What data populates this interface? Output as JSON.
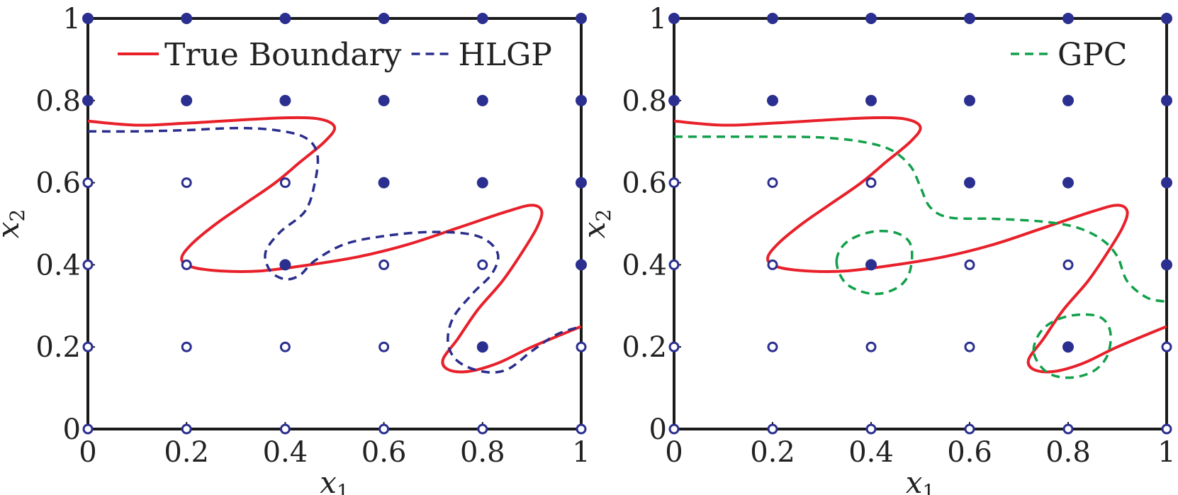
{
  "chart_data": [
    {
      "type": "scatter",
      "panel": "left",
      "xlabel": "x",
      "xlabel_sub": "1",
      "ylabel": "x",
      "ylabel_sub": "2",
      "xlim": [
        0,
        1
      ],
      "ylim": [
        0,
        1
      ],
      "x_ticks": [
        "0",
        "0.2",
        "0.4",
        "0.6",
        "0.8",
        "1"
      ],
      "y_ticks": [
        "0",
        "0.2",
        "0.4",
        "0.6",
        "0.8",
        "1"
      ],
      "grid": false,
      "legend_position": "top",
      "series": [
        {
          "name": "True Boundary",
          "kind": "curve",
          "style": "solid",
          "color": "#e8202a",
          "points": [
            [
              0,
              0.75
            ],
            [
              0.1,
              0.74
            ],
            [
              0.2,
              0.745
            ],
            [
              0.3,
              0.752
            ],
            [
              0.4,
              0.758
            ],
            [
              0.47,
              0.755
            ],
            [
              0.5,
              0.735
            ],
            [
              0.48,
              0.7
            ],
            [
              0.43,
              0.65
            ],
            [
              0.38,
              0.6
            ],
            [
              0.32,
              0.55
            ],
            [
              0.26,
              0.5
            ],
            [
              0.21,
              0.45
            ],
            [
              0.19,
              0.415
            ],
            [
              0.21,
              0.395
            ],
            [
              0.27,
              0.385
            ],
            [
              0.35,
              0.385
            ],
            [
              0.45,
              0.4
            ],
            [
              0.55,
              0.42
            ],
            [
              0.65,
              0.45
            ],
            [
              0.75,
              0.49
            ],
            [
              0.85,
              0.53
            ],
            [
              0.9,
              0.545
            ],
            [
              0.92,
              0.53
            ],
            [
              0.91,
              0.49
            ],
            [
              0.88,
              0.43
            ],
            [
              0.84,
              0.36
            ],
            [
              0.79,
              0.29
            ],
            [
              0.75,
              0.22
            ],
            [
              0.72,
              0.17
            ],
            [
              0.73,
              0.145
            ],
            [
              0.77,
              0.14
            ],
            [
              0.83,
              0.16
            ],
            [
              0.9,
              0.2
            ],
            [
              1,
              0.25
            ]
          ]
        },
        {
          "name": "HLGP",
          "kind": "curve",
          "style": "dashed",
          "color": "#2a2e8c",
          "points": [
            [
              0,
              0.725
            ],
            [
              0.1,
              0.725
            ],
            [
              0.2,
              0.728
            ],
            [
              0.3,
              0.733
            ],
            [
              0.38,
              0.728
            ],
            [
              0.44,
              0.71
            ],
            [
              0.465,
              0.67
            ],
            [
              0.46,
              0.6
            ],
            [
              0.44,
              0.53
            ],
            [
              0.39,
              0.48
            ],
            [
              0.36,
              0.43
            ],
            [
              0.37,
              0.385
            ],
            [
              0.4,
              0.365
            ],
            [
              0.43,
              0.375
            ],
            [
              0.46,
              0.41
            ],
            [
              0.52,
              0.45
            ],
            [
              0.6,
              0.47
            ],
            [
              0.7,
              0.48
            ],
            [
              0.79,
              0.47
            ],
            [
              0.83,
              0.43
            ],
            [
              0.82,
              0.38
            ],
            [
              0.78,
              0.33
            ],
            [
              0.74,
              0.27
            ],
            [
              0.73,
              0.21
            ],
            [
              0.75,
              0.165
            ],
            [
              0.8,
              0.14
            ],
            [
              0.85,
              0.145
            ],
            [
              0.9,
              0.19
            ],
            [
              0.95,
              0.23
            ],
            [
              1,
              0.25
            ]
          ]
        }
      ],
      "grid_points": {
        "x": [
          0,
          0.2,
          0.4,
          0.6,
          0.8,
          1
        ],
        "filled": [
          [
            0,
            1
          ],
          [
            0.2,
            1
          ],
          [
            0.4,
            1
          ],
          [
            0.6,
            1
          ],
          [
            0.8,
            1
          ],
          [
            1,
            1
          ],
          [
            0,
            0.8
          ],
          [
            0.2,
            0.8
          ],
          [
            0.4,
            0.8
          ],
          [
            0.6,
            0.8
          ],
          [
            0.8,
            0.8
          ],
          [
            1,
            0.8
          ],
          [
            0.6,
            0.6
          ],
          [
            0.8,
            0.6
          ],
          [
            1,
            0.6
          ],
          [
            0.4,
            0.4
          ],
          [
            1,
            0.4
          ],
          [
            0.8,
            0.2
          ]
        ],
        "hollow": [
          [
            0,
            0.6
          ],
          [
            0.2,
            0.6
          ],
          [
            0.4,
            0.6
          ],
          [
            0,
            0.4
          ],
          [
            0.2,
            0.4
          ],
          [
            0.6,
            0.4
          ],
          [
            0.8,
            0.4
          ],
          [
            0,
            0.2
          ],
          [
            0.2,
            0.2
          ],
          [
            0.4,
            0.2
          ],
          [
            0.6,
            0.2
          ],
          [
            1,
            0.2
          ],
          [
            0,
            0
          ],
          [
            0.2,
            0
          ],
          [
            0.4,
            0
          ],
          [
            0.6,
            0
          ],
          [
            0.8,
            0
          ],
          [
            1,
            0
          ]
        ],
        "color": "#2b2f8f"
      }
    },
    {
      "type": "scatter",
      "panel": "right",
      "xlabel": "x",
      "xlabel_sub": "1",
      "ylabel": "x",
      "ylabel_sub": "2",
      "xlim": [
        0,
        1
      ],
      "ylim": [
        0,
        1
      ],
      "x_ticks": [
        "0",
        "0.2",
        "0.4",
        "0.6",
        "0.8",
        "1"
      ],
      "y_ticks": [
        "0",
        "0.2",
        "0.4",
        "0.6",
        "0.8",
        "1"
      ],
      "grid": false,
      "legend_position": "top-right",
      "series": [
        {
          "name": "",
          "kind": "curve",
          "style": "solid",
          "color": "#e8202a",
          "points": [
            [
              0,
              0.75
            ],
            [
              0.1,
              0.74
            ],
            [
              0.2,
              0.745
            ],
            [
              0.3,
              0.752
            ],
            [
              0.4,
              0.758
            ],
            [
              0.47,
              0.755
            ],
            [
              0.5,
              0.735
            ],
            [
              0.48,
              0.7
            ],
            [
              0.43,
              0.65
            ],
            [
              0.38,
              0.6
            ],
            [
              0.32,
              0.55
            ],
            [
              0.26,
              0.5
            ],
            [
              0.21,
              0.45
            ],
            [
              0.19,
              0.415
            ],
            [
              0.21,
              0.395
            ],
            [
              0.27,
              0.385
            ],
            [
              0.35,
              0.385
            ],
            [
              0.45,
              0.4
            ],
            [
              0.55,
              0.42
            ],
            [
              0.65,
              0.45
            ],
            [
              0.75,
              0.49
            ],
            [
              0.85,
              0.53
            ],
            [
              0.9,
              0.545
            ],
            [
              0.92,
              0.53
            ],
            [
              0.91,
              0.49
            ],
            [
              0.88,
              0.43
            ],
            [
              0.84,
              0.36
            ],
            [
              0.79,
              0.29
            ],
            [
              0.75,
              0.22
            ],
            [
              0.72,
              0.17
            ],
            [
              0.73,
              0.145
            ],
            [
              0.77,
              0.14
            ],
            [
              0.83,
              0.16
            ],
            [
              0.9,
              0.2
            ],
            [
              1,
              0.25
            ]
          ]
        },
        {
          "name": "GPC",
          "kind": "curve",
          "style": "dashed",
          "color": "#12a04a",
          "points": [
            [
              0,
              0.712
            ],
            [
              0.1,
              0.712
            ],
            [
              0.2,
              0.712
            ],
            [
              0.3,
              0.71
            ],
            [
              0.38,
              0.7
            ],
            [
              0.44,
              0.68
            ],
            [
              0.48,
              0.64
            ],
            [
              0.5,
              0.59
            ],
            [
              0.52,
              0.54
            ],
            [
              0.56,
              0.515
            ],
            [
              0.65,
              0.512
            ],
            [
              0.75,
              0.505
            ],
            [
              0.82,
              0.49
            ],
            [
              0.87,
              0.46
            ],
            [
              0.9,
              0.42
            ],
            [
              0.92,
              0.36
            ],
            [
              0.96,
              0.32
            ],
            [
              1,
              0.31
            ]
          ]
        },
        {
          "name": "",
          "kind": "curve",
          "style": "dashed",
          "color": "#12a04a",
          "closed": true,
          "points": [
            [
              0.33,
              0.41
            ],
            [
              0.35,
              0.455
            ],
            [
              0.4,
              0.48
            ],
            [
              0.45,
              0.478
            ],
            [
              0.48,
              0.45
            ],
            [
              0.48,
              0.39
            ],
            [
              0.46,
              0.35
            ],
            [
              0.42,
              0.33
            ],
            [
              0.38,
              0.335
            ],
            [
              0.345,
              0.36
            ]
          ]
        },
        {
          "name": "",
          "kind": "curve",
          "style": "dashed",
          "color": "#12a04a",
          "closed": true,
          "points": [
            [
              0.73,
              0.19
            ],
            [
              0.75,
              0.245
            ],
            [
              0.8,
              0.275
            ],
            [
              0.86,
              0.275
            ],
            [
              0.885,
              0.24
            ],
            [
              0.88,
              0.18
            ],
            [
              0.85,
              0.14
            ],
            [
              0.8,
              0.125
            ],
            [
              0.755,
              0.14
            ]
          ]
        }
      ],
      "grid_points": {
        "x": [
          0,
          0.2,
          0.4,
          0.6,
          0.8,
          1
        ],
        "filled": [
          [
            0,
            1
          ],
          [
            0.2,
            1
          ],
          [
            0.4,
            1
          ],
          [
            0.6,
            1
          ],
          [
            0.8,
            1
          ],
          [
            1,
            1
          ],
          [
            0,
            0.8
          ],
          [
            0.2,
            0.8
          ],
          [
            0.4,
            0.8
          ],
          [
            0.6,
            0.8
          ],
          [
            0.8,
            0.8
          ],
          [
            1,
            0.8
          ],
          [
            0.6,
            0.6
          ],
          [
            0.8,
            0.6
          ],
          [
            1,
            0.6
          ],
          [
            0.4,
            0.4
          ],
          [
            1,
            0.4
          ],
          [
            0.8,
            0.2
          ]
        ],
        "hollow": [
          [
            0,
            0.6
          ],
          [
            0.2,
            0.6
          ],
          [
            0.4,
            0.6
          ],
          [
            0,
            0.4
          ],
          [
            0.2,
            0.4
          ],
          [
            0.6,
            0.4
          ],
          [
            0.8,
            0.4
          ],
          [
            0,
            0.2
          ],
          [
            0.2,
            0.2
          ],
          [
            0.4,
            0.2
          ],
          [
            0.6,
            0.2
          ],
          [
            1,
            0.2
          ],
          [
            0,
            0
          ],
          [
            0.2,
            0
          ],
          [
            0.4,
            0
          ],
          [
            0.6,
            0
          ],
          [
            0.8,
            0
          ],
          [
            1,
            0
          ]
        ],
        "color": "#2b2f8f"
      }
    }
  ]
}
